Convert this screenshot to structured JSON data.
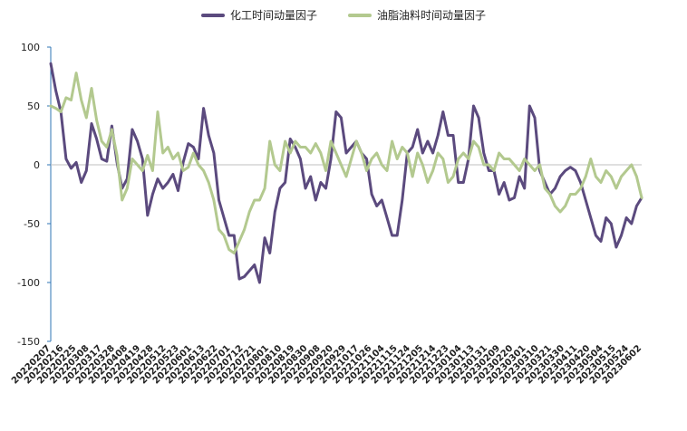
{
  "chart_data": {
    "type": "line",
    "ylim": [
      -150,
      100
    ],
    "yticks": [
      100,
      50,
      0,
      -50,
      -100,
      -150
    ],
    "grid": false,
    "legend_position": "top-center",
    "x_tick_labels": [
      "20220207",
      "20220216",
      "20220225",
      "20220308",
      "20220317",
      "20220328",
      "20220408",
      "20220419",
      "20220428",
      "20220512",
      "20220523",
      "20220601",
      "20220613",
      "20220622",
      "20220701",
      "20220712",
      "20220721",
      "20220801",
      "20220810",
      "20220819",
      "20220830",
      "20220908",
      "20220920",
      "20220929",
      "20221017",
      "20221026",
      "20221104",
      "20221115",
      "20221124",
      "20221205",
      "20221214",
      "20221223",
      "20230104",
      "20230113",
      "20230131",
      "20230209",
      "20230220",
      "20230301",
      "20230310",
      "20230321",
      "20230330",
      "20230411",
      "20230420",
      "20230504",
      "20230515",
      "20230524",
      "20230602"
    ],
    "series": [
      {
        "name": "化工时间动量因子",
        "color": "#5b4a7e",
        "values": [
          86,
          63,
          45,
          5,
          -3,
          2,
          -15,
          -5,
          35,
          22,
          5,
          3,
          33,
          2,
          -20,
          -12,
          30,
          20,
          5,
          -43,
          -25,
          -12,
          -20,
          -15,
          -8,
          -22,
          2,
          18,
          15,
          5,
          48,
          25,
          10,
          -30,
          -45,
          -60,
          -60,
          -97,
          -95,
          -90,
          -85,
          -100,
          -62,
          -75,
          -40,
          -20,
          -15,
          22,
          15,
          5,
          -20,
          -10,
          -30,
          -15,
          -20,
          5,
          45,
          40,
          10,
          15,
          20,
          10,
          5,
          -25,
          -35,
          -30,
          -45,
          -60,
          -60,
          -30,
          10,
          15,
          30,
          10,
          20,
          10,
          25,
          45,
          25,
          25,
          -15,
          -15,
          5,
          50,
          40,
          10,
          -5,
          -5,
          -25,
          -15,
          -30,
          -28,
          -10,
          -20,
          50,
          40,
          -5,
          -15,
          -25,
          -20,
          -10,
          -5,
          -2,
          -5,
          -15,
          -30,
          -45,
          -60,
          -65,
          -45,
          -50,
          -70,
          -60,
          -45,
          -50,
          -35,
          -28
        ],
        "x_index": [
          0,
          1,
          2,
          3,
          4,
          5,
          6,
          7,
          8,
          9,
          10,
          11,
          12,
          13,
          14,
          15,
          16,
          17,
          18,
          19,
          20,
          21,
          22,
          23,
          24,
          25,
          26,
          27,
          28,
          29,
          30,
          31,
          32,
          33,
          34,
          35,
          36,
          37,
          38,
          39,
          40,
          41,
          42,
          43,
          44,
          45,
          46,
          47,
          48,
          49,
          50,
          51,
          52,
          53,
          54,
          55,
          56,
          57,
          58,
          59,
          60,
          61,
          62,
          63,
          64,
          65,
          66,
          67,
          68,
          69,
          70,
          71,
          72,
          73,
          74,
          75,
          76,
          77,
          78,
          79,
          80,
          81,
          82,
          83,
          84,
          85,
          86,
          87,
          88,
          89,
          90,
          91,
          92,
          93,
          94,
          95,
          96,
          97,
          98,
          99,
          100,
          101,
          102,
          103,
          104,
          105,
          106,
          107,
          108,
          109,
          110,
          111,
          112,
          113,
          114,
          115,
          116
        ]
      },
      {
        "name": "油脂油料时间动量因子",
        "color": "#b3c98f",
        "values": [
          50,
          48,
          45,
          57,
          55,
          78,
          55,
          40,
          65,
          38,
          20,
          15,
          30,
          8,
          -30,
          -20,
          5,
          0,
          -5,
          8,
          -5,
          45,
          10,
          15,
          5,
          10,
          -5,
          -2,
          10,
          0,
          -5,
          -15,
          -30,
          -55,
          -60,
          -72,
          -75,
          -65,
          -55,
          -40,
          -30,
          -30,
          -20,
          20,
          0,
          -5,
          20,
          10,
          20,
          15,
          15,
          10,
          18,
          10,
          -5,
          20,
          10,
          0,
          -10,
          5,
          20,
          10,
          -5,
          5,
          10,
          0,
          -5,
          20,
          5,
          15,
          10,
          -10,
          10,
          0,
          -15,
          -5,
          10,
          5,
          -15,
          -10,
          5,
          10,
          5,
          20,
          15,
          0,
          0,
          -5,
          10,
          5,
          5,
          0,
          -5,
          5,
          0,
          -5,
          0,
          -20,
          -25,
          -35,
          -40,
          -35,
          -25,
          -25,
          -20,
          -10,
          5,
          -10,
          -15,
          -5,
          -10,
          -20,
          -10,
          -5,
          0,
          -10,
          -28
        ],
        "x_index": [
          0,
          1,
          2,
          3,
          4,
          5,
          6,
          7,
          8,
          9,
          10,
          11,
          12,
          13,
          14,
          15,
          16,
          17,
          18,
          19,
          20,
          21,
          22,
          23,
          24,
          25,
          26,
          27,
          28,
          29,
          30,
          31,
          32,
          33,
          34,
          35,
          36,
          37,
          38,
          39,
          40,
          41,
          42,
          43,
          44,
          45,
          46,
          47,
          48,
          49,
          50,
          51,
          52,
          53,
          54,
          55,
          56,
          57,
          58,
          59,
          60,
          61,
          62,
          63,
          64,
          65,
          66,
          67,
          68,
          69,
          70,
          71,
          72,
          73,
          74,
          75,
          76,
          77,
          78,
          79,
          80,
          81,
          82,
          83,
          84,
          85,
          86,
          87,
          88,
          89,
          90,
          91,
          92,
          93,
          94,
          95,
          96,
          97,
          98,
          99,
          100,
          101,
          102,
          103,
          104,
          105,
          106,
          107,
          108,
          109,
          110,
          111,
          112,
          113,
          114,
          115,
          116
        ]
      }
    ]
  }
}
